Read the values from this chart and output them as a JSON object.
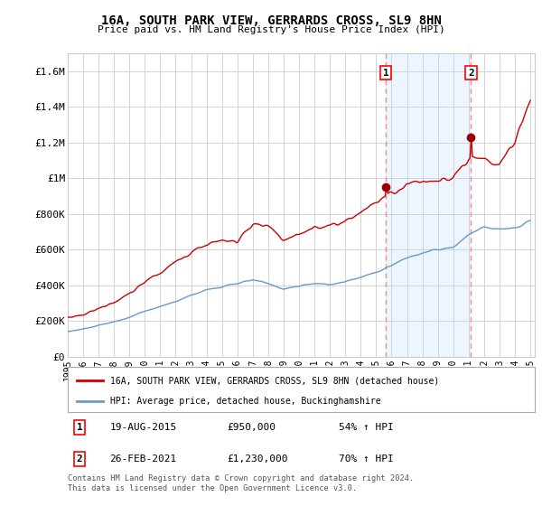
{
  "title": "16A, SOUTH PARK VIEW, GERRARDS CROSS, SL9 8HN",
  "subtitle": "Price paid vs. HM Land Registry's House Price Index (HPI)",
  "ylim": [
    0,
    1700000
  ],
  "yticks": [
    0,
    200000,
    400000,
    600000,
    800000,
    1000000,
    1200000,
    1400000,
    1600000
  ],
  "ytick_labels": [
    "£0",
    "£200K",
    "£400K",
    "£600K",
    "£800K",
    "£1M",
    "£1.2M",
    "£1.4M",
    "£1.6M"
  ],
  "xlim_start": 1995.0,
  "xlim_end": 2025.3,
  "xticks": [
    1995,
    1996,
    1997,
    1998,
    1999,
    2000,
    2001,
    2002,
    2003,
    2004,
    2005,
    2006,
    2007,
    2008,
    2009,
    2010,
    2011,
    2012,
    2013,
    2014,
    2015,
    2016,
    2017,
    2018,
    2019,
    2020,
    2021,
    2022,
    2023,
    2024,
    2025
  ],
  "price_line_color": "#cc0000",
  "hpi_line_color": "#6699cc",
  "vline_color": "#ff8888",
  "marker1_x": 2015.63,
  "marker1_y": 950000,
  "marker2_x": 2021.15,
  "marker2_y": 1230000,
  "shade_color": "#ddeeff",
  "legend_label1": "16A, SOUTH PARK VIEW, GERRARDS CROSS, SL9 8HN (detached house)",
  "legend_label2": "HPI: Average price, detached house, Buckinghamshire",
  "ann1_date": "19-AUG-2015",
  "ann1_price": "£950,000",
  "ann1_hpi": "54% ↑ HPI",
  "ann2_date": "26-FEB-2021",
  "ann2_price": "£1,230,000",
  "ann2_hpi": "70% ↑ HPI",
  "footer": "Contains HM Land Registry data © Crown copyright and database right 2024.\nThis data is licensed under the Open Government Licence v3.0.",
  "bg_color": "#ffffff",
  "grid_color": "#cccccc"
}
